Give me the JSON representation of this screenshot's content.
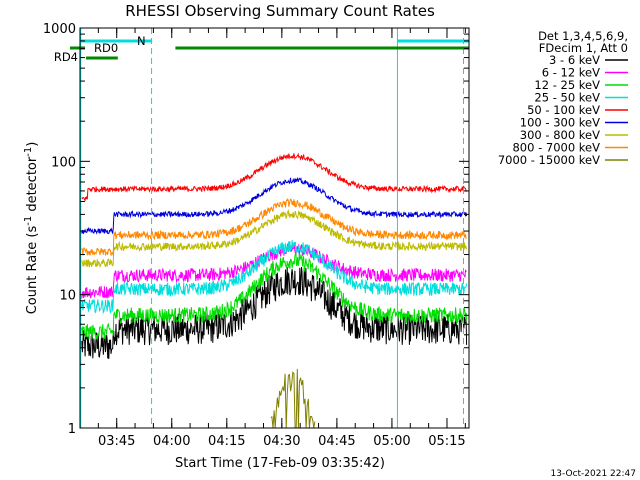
{
  "chart_data": {
    "type": "line",
    "title": "RHESSI Observing Summary Count Rates",
    "xlabel": "Start Time (17-Feb-09 03:35:42)",
    "ylabel": "Count Rate (s",
    "ylabel_sup1": "-1",
    "ylabel_mid": " detector",
    "ylabel_sup2": "-1",
    "ylabel_end": ")",
    "y_scale": "log",
    "ylim": [
      1,
      1000
    ],
    "xlim_minutes_from_0335": [
      0,
      106
    ],
    "x_ticks": [
      {
        "label": "03:45",
        "minutes": 10
      },
      {
        "label": "04:00",
        "minutes": 25
      },
      {
        "label": "04:15",
        "minutes": 40
      },
      {
        "label": "04:30",
        "minutes": 55
      },
      {
        "label": "04:45",
        "minutes": 70
      },
      {
        "label": "05:00",
        "minutes": 85
      },
      {
        "label": "05:15",
        "minutes": 100
      }
    ],
    "y_ticks": [
      {
        "label": "1",
        "value": 1
      },
      {
        "label": "10",
        "value": 10
      },
      {
        "label": "100",
        "value": 100
      },
      {
        "label": "1000",
        "value": 1000
      }
    ],
    "legend_header": [
      "Det 1,3,4,5,6,9,",
      "FDecim 1, Att 0"
    ],
    "series": [
      {
        "name": "3 - 6 keV",
        "color": "#000000",
        "base": 5.5,
        "peak": 13,
        "noise": 0.12
      },
      {
        "name": "6 - 12 keV",
        "color": "#ff00ff",
        "base": 14,
        "peak": 22,
        "noise": 0.05
      },
      {
        "name": "12 - 25 keV",
        "color": "#00dd00",
        "base": 7,
        "peak": 18,
        "noise": 0.06
      },
      {
        "name": "25 - 50 keV",
        "color": "#00dddd",
        "base": 11,
        "peak": 23,
        "noise": 0.05
      },
      {
        "name": "50 - 100 keV",
        "color": "#ff0000",
        "base": 62,
        "peak": 110,
        "noise": 0.02
      },
      {
        "name": "100 - 300 keV",
        "color": "#0000dd",
        "base": 40,
        "peak": 72,
        "noise": 0.02
      },
      {
        "name": "300 - 800 keV",
        "color": "#bbbb00",
        "base": 23,
        "peak": 40,
        "noise": 0.03
      },
      {
        "name": "800 - 7000 keV",
        "color": "#ff8800",
        "base": 28,
        "peak": 49,
        "noise": 0.03
      },
      {
        "name": "7000 - 15000 keV",
        "color": "#808000",
        "base": 0,
        "peak": 2.5,
        "noise": 0.3
      }
    ],
    "flags": [
      {
        "label": "N",
        "color": "#00dddd"
      },
      {
        "label": "RD0",
        "color": "#008800"
      },
      {
        "label": "RD4",
        "color": "#008800"
      }
    ],
    "stamp": "13-Oct-2021 22:47"
  }
}
